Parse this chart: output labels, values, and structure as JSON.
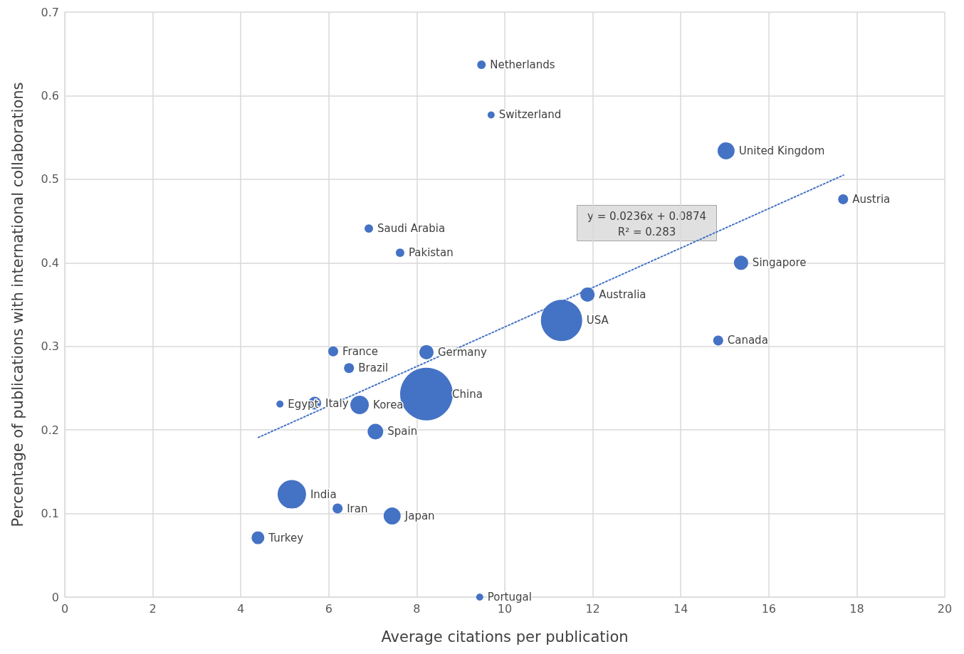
{
  "chart_data": {
    "type": "bubble",
    "xlabel": "Average citations per publication",
    "ylabel": "Percentage of publications with international collaborations",
    "xlim": [
      0,
      20
    ],
    "xticks": [
      0,
      2,
      4,
      6,
      8,
      10,
      12,
      14,
      16,
      18,
      20
    ],
    "ylim": [
      0,
      0.7
    ],
    "yticks": [
      0,
      0.1,
      0.2,
      0.3,
      0.4,
      0.5,
      0.6,
      0.7
    ],
    "grid": true,
    "series": [
      {
        "color": "#4472c4",
        "x": [
          9.47,
          9.69,
          15.03,
          17.69,
          6.91,
          7.62,
          15.37,
          11.88,
          11.29,
          14.85,
          6.1,
          8.22,
          6.46,
          8.22,
          4.89,
          5.68,
          6.7,
          7.06,
          5.16,
          6.2,
          7.44,
          4.39,
          9.43
        ],
        "values": [
          0.637,
          0.577,
          0.534,
          0.476,
          0.441,
          0.412,
          0.4,
          0.362,
          0.331,
          0.307,
          0.294,
          0.293,
          0.274,
          0.243,
          0.231,
          0.232,
          0.23,
          0.198,
          0.123,
          0.106,
          0.097,
          0.071,
          0
        ],
        "sizes": [
          0.026,
          0.018,
          0.105,
          0.036,
          0.026,
          0.026,
          0.073,
          0.073,
          0.614,
          0.036,
          0.036,
          0.073,
          0.036,
          1,
          0.018,
          0.059,
          0.123,
          0.088,
          0.292,
          0.036,
          0.105,
          0.059,
          0.018
        ]
      },
      {
        "type": "line",
        "color": "#4472c4",
        "line_style": "dotted",
        "x": [
          4.4,
          17.7
        ],
        "values": [
          0.191,
          0.505
        ]
      }
    ],
    "annotations": [
      {
        "text": "Netherlands",
        "x": 9.47,
        "y": 0.637
      },
      {
        "text": "Switzerland",
        "x": 9.69,
        "y": 0.577
      },
      {
        "text": "United Kingdom",
        "x": 15.03,
        "y": 0.534
      },
      {
        "text": "Austria",
        "x": 17.69,
        "y": 0.476
      },
      {
        "text": "Saudi Arabia",
        "x": 6.91,
        "y": 0.441
      },
      {
        "text": "Pakistan",
        "x": 7.62,
        "y": 0.412
      },
      {
        "text": "Singapore",
        "x": 15.37,
        "y": 0.4
      },
      {
        "text": "Australia",
        "x": 11.88,
        "y": 0.362
      },
      {
        "text": "USA",
        "x": 11.29,
        "y": 0.331
      },
      {
        "text": "Canada",
        "x": 14.85,
        "y": 0.307
      },
      {
        "text": "France",
        "x": 6.1,
        "y": 0.294
      },
      {
        "text": "Germany",
        "x": 8.22,
        "y": 0.293
      },
      {
        "text": "Brazil",
        "x": 6.46,
        "y": 0.274
      },
      {
        "text": "China",
        "x": 8.22,
        "y": 0.243
      },
      {
        "text": "Egypt",
        "x": 4.89,
        "y": 0.231
      },
      {
        "text": "Italy",
        "x": 5.68,
        "y": 0.232
      },
      {
        "text": "Korea",
        "x": 6.7,
        "y": 0.23
      },
      {
        "text": "Spain",
        "x": 7.06,
        "y": 0.198
      },
      {
        "text": "India",
        "x": 5.16,
        "y": 0.123
      },
      {
        "text": "Iran",
        "x": 6.2,
        "y": 0.106
      },
      {
        "text": "Japan",
        "x": 7.44,
        "y": 0.097
      },
      {
        "text": "Turkey",
        "x": 4.39,
        "y": 0.071
      },
      {
        "text": "Portugal",
        "x": 9.43,
        "y": 0
      },
      "y = 0.0236x + 0.0874",
      "R² = 0.283"
    ]
  }
}
